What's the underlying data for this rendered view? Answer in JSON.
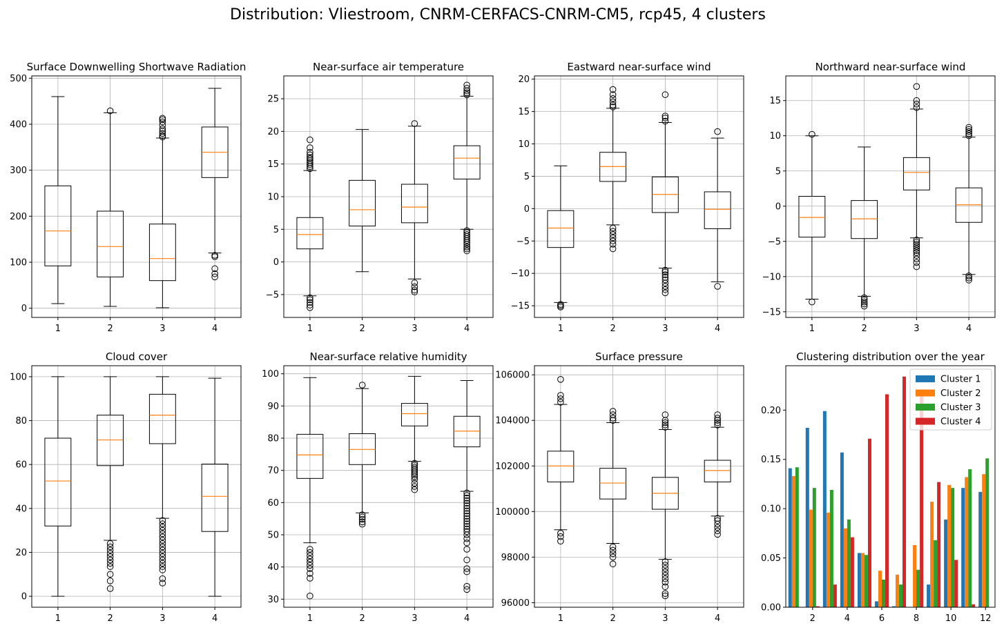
{
  "suptitle": "Distribution: Vliestroom, CNRM-CERFACS-CNRM-CM5, rcp45, 4 clusters",
  "chart_data": [
    {
      "type": "box",
      "title": "Surface Downwelling Shortwave Radiation",
      "categories": [
        "1",
        "2",
        "3",
        "4"
      ],
      "ylim": [
        -20,
        505
      ],
      "yticks": [
        0,
        100,
        200,
        300,
        400,
        500
      ],
      "grid": true,
      "boxes": [
        {
          "whislo": 10,
          "q1": 92,
          "med": 168,
          "q3": 266,
          "whishi": 460,
          "fliers": []
        },
        {
          "whislo": 4,
          "q1": 68,
          "med": 134,
          "q3": 211,
          "whishi": 425,
          "fliers": [
            429
          ]
        },
        {
          "whislo": 1,
          "q1": 60,
          "med": 108,
          "q3": 183,
          "whishi": 370,
          "fliers": [
            372,
            375,
            380,
            385,
            390,
            398,
            405,
            410,
            413
          ]
        },
        {
          "whislo": 120,
          "q1": 284,
          "med": 339,
          "q3": 394,
          "whishi": 478,
          "fliers": [
            112,
            115,
            86,
            75,
            68
          ]
        }
      ]
    },
    {
      "type": "box",
      "title": "Near-surface air temperature",
      "categories": [
        "1",
        "2",
        "3",
        "4"
      ],
      "ylim": [
        -8.5,
        28.5
      ],
      "yticks": [
        -5,
        0,
        5,
        10,
        15,
        20,
        25
      ],
      "grid": true,
      "boxes": [
        {
          "whislo": -5.2,
          "q1": 2.0,
          "med": 4.2,
          "q3": 6.8,
          "whishi": 14.0,
          "fliers": [
            14.3,
            14.6,
            14.9,
            15.2,
            15.5,
            15.8,
            16.0,
            16.4,
            16.8,
            17.5,
            18.7,
            -5.5,
            -5.8,
            -6.2,
            -6.6,
            -7.0
          ]
        },
        {
          "whislo": -1.5,
          "q1": 5.5,
          "med": 8.0,
          "q3": 12.5,
          "whishi": 20.3,
          "fliers": []
        },
        {
          "whislo": -2.6,
          "q1": 6.0,
          "med": 8.4,
          "q3": 11.9,
          "whishi": 20.8,
          "fliers": [
            21.2,
            -3.2,
            -3.8,
            -4.3,
            -4.6
          ]
        },
        {
          "whislo": 5.0,
          "q1": 12.7,
          "med": 15.9,
          "q3": 17.8,
          "whishi": 25.4,
          "fliers": [
            25.6,
            25.9,
            26.2,
            26.6,
            27.1,
            4.8,
            4.5,
            4.2,
            3.9,
            3.6,
            3.3,
            3.0,
            2.7,
            2.3,
            2.0,
            1.7
          ]
        }
      ]
    },
    {
      "type": "box",
      "title": "Eastward near-surface wind",
      "categories": [
        "1",
        "2",
        "3",
        "4"
      ],
      "ylim": [
        -16.8,
        20.5
      ],
      "yticks": [
        -15,
        -10,
        -5,
        0,
        5,
        10,
        15,
        20
      ],
      "grid": true,
      "boxes": [
        {
          "whislo": -14.5,
          "q1": -6.0,
          "med": -3.0,
          "q3": -0.3,
          "whishi": 6.6,
          "fliers": [
            -14.8,
            -15.0,
            -15.2
          ]
        },
        {
          "whislo": -2.5,
          "q1": 4.2,
          "med": 6.5,
          "q3": 8.7,
          "whishi": 15.5,
          "fliers": [
            15.7,
            16.0,
            16.5,
            17.0,
            17.6,
            18.4,
            -3.0,
            -3.5,
            -4.0,
            -4.5,
            -5.0,
            -5.5,
            -6.2
          ]
        },
        {
          "whislo": -9.2,
          "q1": -0.6,
          "med": 2.2,
          "q3": 4.9,
          "whishi": 13.3,
          "fliers": [
            13.5,
            14.0,
            14.3,
            17.6,
            -9.5,
            -9.8,
            -10.2,
            -10.6,
            -11.0,
            -11.5,
            -12.0,
            -12.5,
            -13.0
          ]
        },
        {
          "whislo": -11.3,
          "q1": -3.1,
          "med": -0.1,
          "q3": 2.6,
          "whishi": 10.9,
          "fliers": [
            11.9,
            -12.0
          ]
        }
      ]
    },
    {
      "type": "box",
      "title": "Northward near-surface wind",
      "categories": [
        "1",
        "2",
        "3",
        "4"
      ],
      "ylim": [
        -15.8,
        18.5
      ],
      "yticks": [
        -15,
        -10,
        -5,
        0,
        5,
        10,
        15
      ],
      "grid": true,
      "boxes": [
        {
          "whislo": -13.2,
          "q1": -4.4,
          "med": -1.6,
          "q3": 1.4,
          "whishi": 10.0,
          "fliers": [
            10.2,
            -13.6
          ]
        },
        {
          "whislo": -12.8,
          "q1": -4.6,
          "med": -1.8,
          "q3": 0.8,
          "whishi": 8.4,
          "fliers": [
            -13.0,
            -13.3,
            -13.6,
            -13.9,
            -14.2
          ]
        },
        {
          "whislo": -4.5,
          "q1": 2.3,
          "med": 4.8,
          "q3": 6.9,
          "whishi": 13.8,
          "fliers": [
            14.0,
            14.5,
            15.0,
            17.0,
            -4.8,
            -5.1,
            -5.4,
            -5.7,
            -6.0,
            -6.3,
            -6.6,
            -7.0,
            -7.5,
            -8.0,
            -8.6
          ]
        },
        {
          "whislo": -9.7,
          "q1": -2.3,
          "med": 0.2,
          "q3": 2.6,
          "whishi": 9.8,
          "fliers": [
            10.0,
            10.3,
            10.6,
            10.9,
            11.2,
            -9.9,
            -10.2,
            -10.5
          ]
        }
      ]
    },
    {
      "type": "box",
      "title": "Cloud cover",
      "categories": [
        "1",
        "2",
        "3",
        "4"
      ],
      "ylim": [
        -5,
        105
      ],
      "yticks": [
        0,
        20,
        40,
        60,
        80,
        100
      ],
      "grid": true,
      "boxes": [
        {
          "whislo": 0,
          "q1": 32,
          "med": 52.5,
          "q3": 72,
          "whishi": 100,
          "fliers": []
        },
        {
          "whislo": 25.5,
          "q1": 59.5,
          "med": 71.2,
          "q3": 82.5,
          "whishi": 100,
          "fliers": [
            24,
            22.5,
            21,
            19.5,
            18,
            16.5,
            15,
            13.5,
            10,
            7,
            3.5
          ]
        },
        {
          "whislo": 35.5,
          "q1": 69.5,
          "med": 82.5,
          "q3": 92,
          "whishi": 100,
          "fliers": [
            34.5,
            33,
            31.5,
            30,
            28.5,
            27,
            25.5,
            24,
            22.5,
            21,
            19.5,
            18,
            16.5,
            15,
            13.5,
            12,
            8,
            6
          ]
        },
        {
          "whislo": 0,
          "q1": 29.5,
          "med": 45.5,
          "q3": 60.2,
          "whishi": 99.3,
          "fliers": []
        }
      ]
    },
    {
      "type": "box",
      "title": "Near-surface relative humidity",
      "categories": [
        "1",
        "2",
        "3",
        "4"
      ],
      "ylim": [
        27.5,
        102.5
      ],
      "yticks": [
        30,
        40,
        50,
        60,
        70,
        80,
        90,
        100
      ],
      "grid": true,
      "boxes": [
        {
          "whislo": 47.5,
          "q1": 67.5,
          "med": 74.8,
          "q3": 81.2,
          "whishi": 98.8,
          "fliers": [
            45.5,
            44.5,
            43.5,
            42.5,
            41.5,
            40.5,
            39.5,
            38,
            36.5,
            31
          ]
        },
        {
          "whislo": 56.8,
          "q1": 71.8,
          "med": 76.5,
          "q3": 81.4,
          "whishi": 95.4,
          "fliers": [
            96.5,
            56.2,
            55.5,
            54.8,
            54,
            53.3
          ]
        },
        {
          "whislo": 72.8,
          "q1": 83.8,
          "med": 87.6,
          "q3": 90.8,
          "whishi": 99.2,
          "fliers": [
            72.2,
            71.6,
            71,
            70.4,
            69.8,
            69.2,
            68.6,
            68,
            67.2,
            66,
            65,
            64
          ]
        },
        {
          "whislo": 63.5,
          "q1": 77.3,
          "med": 82.2,
          "q3": 86.8,
          "whishi": 97.9,
          "fliers": [
            63,
            62.2,
            61.4,
            60.6,
            59.8,
            59,
            58.2,
            57.4,
            56.6,
            55.8,
            55,
            54.2,
            53.4,
            52.6,
            51.8,
            51,
            50,
            48.8,
            47.5,
            45.5,
            42.2,
            39.5,
            38.5,
            34,
            33
          ]
        }
      ]
    },
    {
      "type": "box",
      "title": "Surface pressure",
      "categories": [
        "1",
        "2",
        "3",
        "4"
      ],
      "ylim": [
        95800,
        106400
      ],
      "yticks": [
        96000,
        98000,
        100000,
        102000,
        104000,
        106000
      ],
      "grid": true,
      "boxes": [
        {
          "whislo": 99200,
          "q1": 101300,
          "med": 102000,
          "q3": 102650,
          "whishi": 104700,
          "fliers": [
            104800,
            104950,
            105100,
            105800,
            99050,
            98900,
            98700
          ]
        },
        {
          "whislo": 98600,
          "q1": 100550,
          "med": 101250,
          "q3": 101900,
          "whishi": 103900,
          "fliers": [
            104000,
            104100,
            104250,
            104400,
            98450,
            98300,
            98150,
            98000,
            97700
          ]
        },
        {
          "whislo": 97900,
          "q1": 100100,
          "med": 100800,
          "q3": 101500,
          "whishi": 103600,
          "fliers": [
            103700,
            103800,
            103900,
            104000,
            104250,
            97800,
            97650,
            97500,
            97350,
            97200,
            97050,
            96900,
            96700,
            96400,
            96300
          ]
        },
        {
          "whislo": 99800,
          "q1": 101300,
          "med": 101800,
          "q3": 102250,
          "whishi": 103700,
          "fliers": [
            103800,
            103900,
            104000,
            104100,
            104250,
            99700,
            99600,
            99450,
            99300,
            99150,
            99000
          ]
        }
      ]
    },
    {
      "type": "bar",
      "title": "Clustering distribution over the year",
      "x": [
        1,
        2,
        3,
        4,
        5,
        6,
        7,
        8,
        9,
        10,
        11,
        12
      ],
      "xticks": [
        2,
        4,
        6,
        8,
        10,
        12
      ],
      "ylim": [
        0,
        0.245
      ],
      "yticks": [
        0.0,
        0.05,
        0.1,
        0.15,
        0.2
      ],
      "ytick_labels": [
        "0.00",
        "0.05",
        "0.10",
        "0.15",
        "0.20"
      ],
      "grid": false,
      "legend_position": "top-right",
      "series": [
        {
          "name": "Cluster 1",
          "color": "#1f77b4",
          "values": [
            0.141,
            0.182,
            0.199,
            0.157,
            0.055,
            0.006,
            0.001,
            0.0,
            0.023,
            0.089,
            0.121,
            0.117
          ]
        },
        {
          "name": "Cluster 2",
          "color": "#ff7f0e",
          "values": [
            0.133,
            0.099,
            0.096,
            0.08,
            0.055,
            0.037,
            0.033,
            0.063,
            0.107,
            0.124,
            0.132,
            0.135
          ]
        },
        {
          "name": "Cluster 3",
          "color": "#2ca02c",
          "values": [
            0.142,
            0.121,
            0.119,
            0.089,
            0.053,
            0.028,
            0.023,
            0.038,
            0.068,
            0.121,
            0.14,
            0.151
          ]
        },
        {
          "name": "Cluster 4",
          "color": "#d62728",
          "values": [
            0.0,
            0.001,
            0.023,
            0.071,
            0.171,
            0.216,
            0.234,
            0.221,
            0.127,
            0.048,
            0.003,
            0.0
          ]
        }
      ]
    }
  ]
}
